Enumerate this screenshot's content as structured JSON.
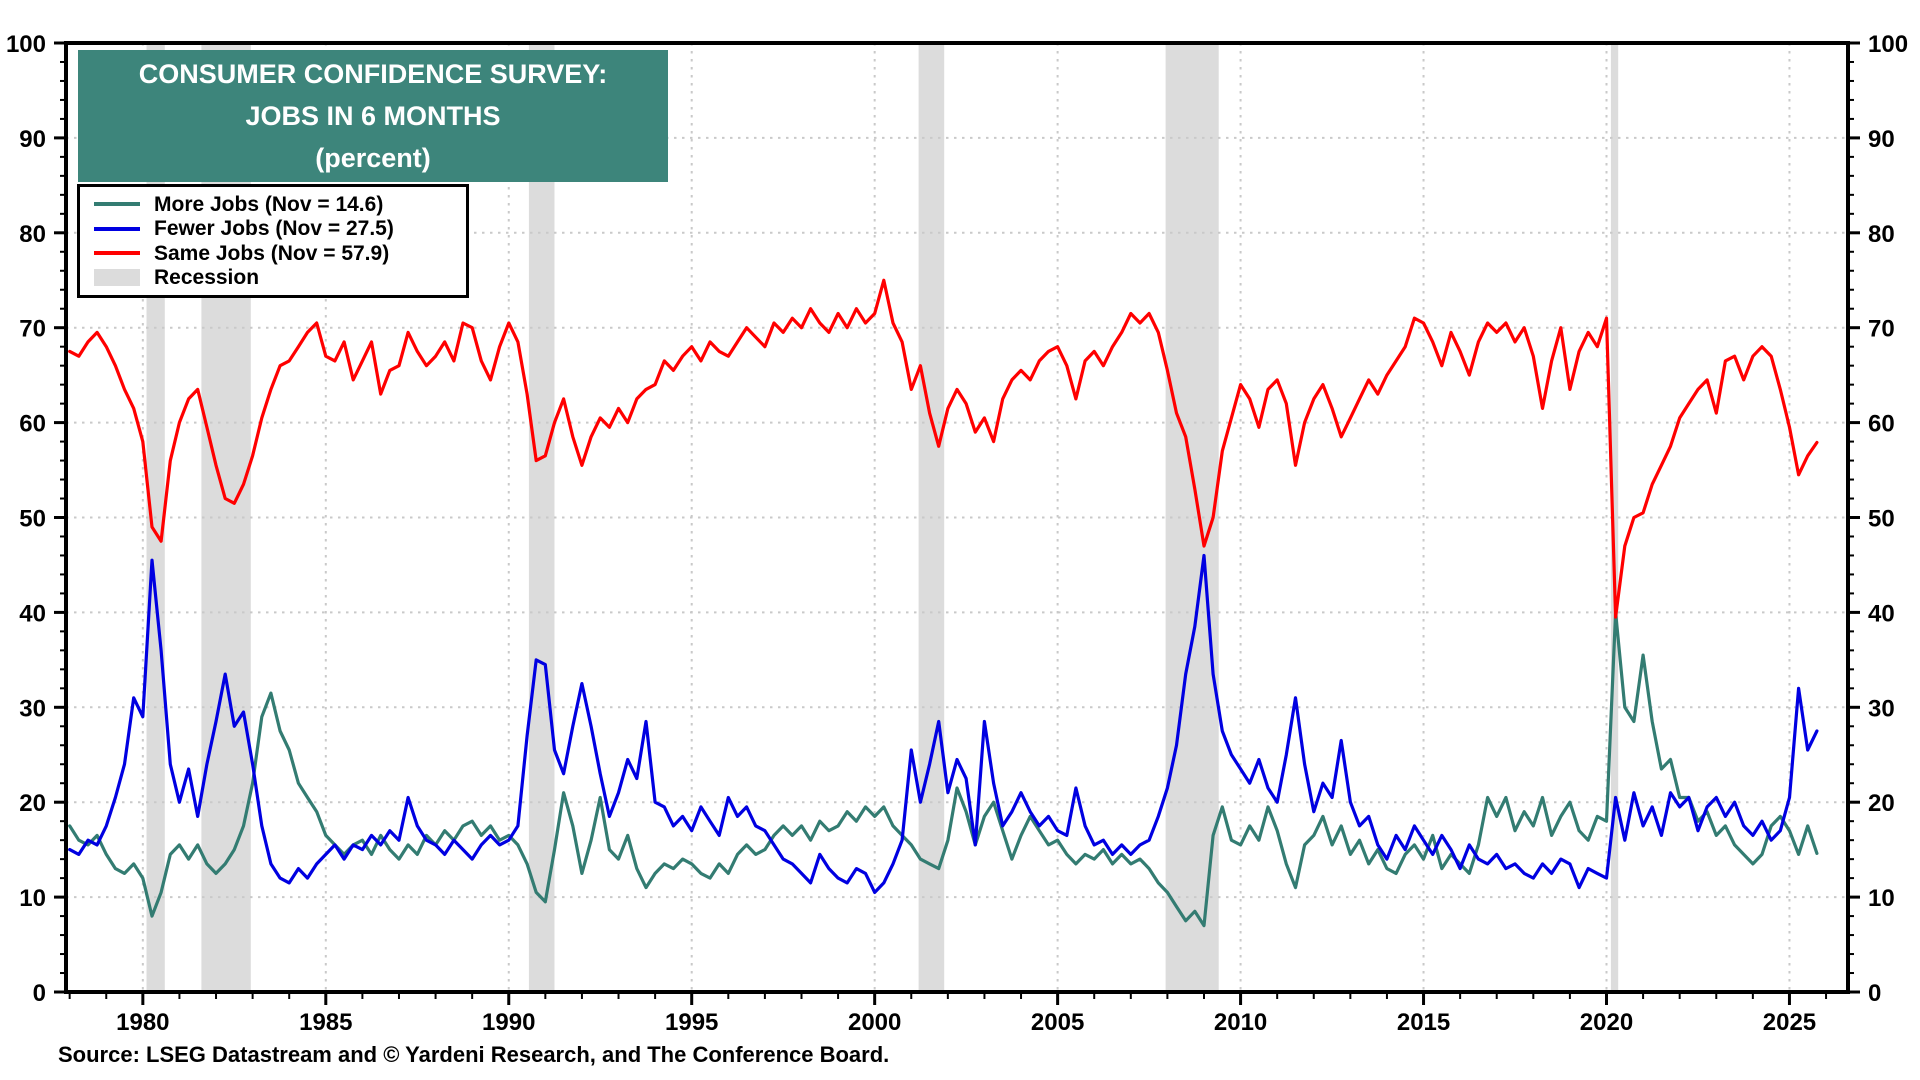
{
  "title": {
    "line1": "CONSUMER CONFIDENCE SURVEY:",
    "line2": "JOBS IN 6 MONTHS",
    "line3": "(percent)"
  },
  "legend": {
    "items": [
      {
        "label": "More Jobs (Nov = 14.6)",
        "color": "#337c72",
        "marker": "line"
      },
      {
        "label": "Fewer Jobs (Nov = 27.5)",
        "color": "#0000e1",
        "marker": "line"
      },
      {
        "label": "Same Jobs (Nov = 57.9)",
        "color": "#ff0000",
        "marker": "line"
      },
      {
        "label": "Recession",
        "color": "#dcdcdc",
        "marker": "patch"
      }
    ]
  },
  "source_note": "Source: LSEG Datastream and © Yardeni Research, and The Conference Board.",
  "colors": {
    "title_bg": "#3d857b",
    "title_text": "#ffffff",
    "grid": "#c9c9c9",
    "recession": "#dcdcdc",
    "frame": "#000000",
    "tick_label": "#000000"
  },
  "chart_data": {
    "type": "line",
    "title": "CONSUMER CONFIDENCE SURVEY: JOBS IN 6 MONTHS (percent)",
    "xlabel": "",
    "ylabel": "percent",
    "xlim": [
      1977.9,
      2026.6
    ],
    "ylim": [
      0,
      100
    ],
    "x_ticks": [
      1980,
      1985,
      1990,
      1995,
      2000,
      2005,
      2010,
      2015,
      2020,
      2025
    ],
    "x_minor_step": 1,
    "y_ticks": [
      0,
      10,
      20,
      30,
      40,
      50,
      60,
      70,
      80,
      90,
      100
    ],
    "y_minor_step": 2,
    "grid": "dotted gray at every labeled x year and every y multiple of 10",
    "legend_position": "upper-left",
    "x_start": 1978.0,
    "x_step": 0.25,
    "x_unit": "year (quarterly samples of monthly survey data, ending Nov 2025)",
    "recessions": [
      [
        1980.1,
        1980.6
      ],
      [
        1981.6,
        1982.95
      ],
      [
        1990.55,
        1991.25
      ],
      [
        2001.2,
        2001.9
      ],
      [
        2007.95,
        2009.4
      ],
      [
        2020.12,
        2020.32
      ]
    ],
    "series": [
      {
        "name": "More Jobs",
        "nov_2025_value": 14.6,
        "color": "#337c72",
        "values": [
          17.5,
          16,
          15.5,
          16.5,
          14.5,
          13,
          12.5,
          13.5,
          12,
          8,
          10.5,
          14.5,
          15.5,
          14,
          15.5,
          13.5,
          12.5,
          13.5,
          15,
          17.5,
          22,
          29,
          31.5,
          27.5,
          25.5,
          22,
          20.5,
          19,
          16.5,
          15.5,
          14.5,
          15.5,
          16,
          14.5,
          16.5,
          15,
          14,
          15.5,
          14.5,
          16.5,
          15.5,
          17,
          16,
          17.5,
          18,
          16.5,
          17.5,
          16,
          16.5,
          15.5,
          13.5,
          10.5,
          9.5,
          15,
          21,
          17.5,
          12.5,
          16,
          20.5,
          15,
          14,
          16.5,
          13,
          11,
          12.5,
          13.5,
          13,
          14,
          13.5,
          12.5,
          12,
          13.5,
          12.5,
          14.5,
          15.5,
          14.5,
          15,
          16.5,
          17.5,
          16.5,
          17.5,
          16,
          18,
          17,
          17.5,
          19,
          18,
          19.5,
          18.5,
          19.5,
          17.5,
          16.5,
          15.5,
          14,
          13.5,
          13,
          16,
          21.5,
          19,
          15.5,
          18.5,
          20,
          17,
          14,
          16.5,
          18.5,
          17,
          15.5,
          16,
          14.5,
          13.5,
          14.5,
          14,
          15,
          13.5,
          14.5,
          13.5,
          14,
          13,
          11.5,
          10.5,
          9,
          7.5,
          8.5,
          7,
          16.5,
          19.5,
          16,
          15.5,
          17.5,
          16,
          19.5,
          17,
          13.5,
          11,
          15.5,
          16.5,
          18.5,
          15.5,
          17.5,
          14.5,
          16,
          13.5,
          15,
          13,
          12.5,
          14.5,
          15.5,
          14,
          16.5,
          13,
          14.5,
          13.5,
          12.5,
          15.5,
          20.5,
          18.5,
          20.5,
          17,
          19,
          17.5,
          20.5,
          16.5,
          18.5,
          20,
          17,
          16,
          18.5,
          18,
          40,
          30,
          28.5,
          35.5,
          28.5,
          23.5,
          24.5,
          20.5,
          20.5,
          18,
          19,
          16.5,
          17.5,
          15.5,
          14.5,
          13.5,
          14.5,
          17.5,
          18.5,
          17,
          14.5,
          17.5,
          14.6
        ]
      },
      {
        "name": "Fewer Jobs",
        "nov_2025_value": 27.5,
        "color": "#0000e1",
        "values": [
          15,
          14.5,
          16,
          15.5,
          17.5,
          20.5,
          24,
          31,
          29,
          45.5,
          36,
          24,
          20,
          23.5,
          18.5,
          24,
          28.5,
          33.5,
          28,
          29.5,
          24,
          17.5,
          13.5,
          12,
          11.5,
          13,
          12,
          13.5,
          14.5,
          15.5,
          14,
          15.5,
          15,
          16.5,
          15.5,
          17,
          16,
          20.5,
          17.5,
          16,
          15.5,
          14.5,
          16,
          15,
          14,
          15.5,
          16.5,
          15.5,
          16,
          17.5,
          27,
          35,
          34.5,
          25.5,
          23,
          28,
          32.5,
          28,
          23,
          18.5,
          21,
          24.5,
          22.5,
          28.5,
          20,
          19.5,
          17.5,
          18.5,
          17,
          19.5,
          18,
          16.5,
          20.5,
          18.5,
          19.5,
          17.5,
          17,
          15.5,
          14,
          13.5,
          12.5,
          11.5,
          14.5,
          13,
          12,
          11.5,
          13,
          12.5,
          10.5,
          11.5,
          13.5,
          16,
          25.5,
          20,
          24,
          28.5,
          21,
          24.5,
          22.5,
          15.5,
          28.5,
          22,
          17.5,
          19,
          21,
          19,
          17.5,
          18.5,
          17,
          16.5,
          21.5,
          17.5,
          15.5,
          16,
          14.5,
          15.5,
          14.5,
          15.5,
          16,
          18.5,
          21.5,
          26,
          33.5,
          38.5,
          46,
          33.5,
          27.5,
          25,
          23.5,
          22,
          24.5,
          21.5,
          20,
          25,
          31,
          24,
          19,
          22,
          20.5,
          26.5,
          20,
          17.5,
          18.5,
          15.5,
          14,
          16.5,
          15,
          17.5,
          16,
          14.5,
          16.5,
          15,
          13,
          15.5,
          14,
          13.5,
          14.5,
          13,
          13.5,
          12.5,
          12,
          13.5,
          12.5,
          14,
          13.5,
          11,
          13,
          12.5,
          12,
          20.5,
          16,
          21,
          17.5,
          19.5,
          16.5,
          21,
          19.5,
          20.5,
          17,
          19.5,
          20.5,
          18.5,
          20,
          17.5,
          16.5,
          18,
          16,
          17,
          20.5,
          32,
          25.5,
          27.5
        ]
      },
      {
        "name": "Same Jobs",
        "nov_2025_value": 57.9,
        "color": "#ff0000",
        "values": [
          67.5,
          67,
          68.5,
          69.5,
          68,
          66,
          63.5,
          61.5,
          58,
          49,
          47.5,
          56,
          60,
          62.5,
          63.5,
          59.5,
          55.5,
          52,
          51.5,
          53.5,
          56.5,
          60.5,
          63.5,
          66,
          66.5,
          68,
          69.5,
          70.5,
          67,
          66.5,
          68.5,
          64.5,
          66.5,
          68.5,
          63,
          65.5,
          66,
          69.5,
          67.5,
          66,
          67,
          68.5,
          66.5,
          70.5,
          70,
          66.5,
          64.5,
          68,
          70.5,
          68.5,
          63,
          56,
          56.5,
          60,
          62.5,
          58.5,
          55.5,
          58.5,
          60.5,
          59.5,
          61.5,
          60,
          62.5,
          63.5,
          64,
          66.5,
          65.5,
          67,
          68,
          66.5,
          68.5,
          67.5,
          67,
          68.5,
          70,
          69,
          68,
          70.5,
          69.5,
          71,
          70,
          72,
          70.5,
          69.5,
          71.5,
          70,
          72,
          70.5,
          71.5,
          75,
          70.5,
          68.5,
          63.5,
          66,
          61,
          57.5,
          61.5,
          63.5,
          62,
          59,
          60.5,
          58,
          62.5,
          64.5,
          65.5,
          64.5,
          66.5,
          67.5,
          68,
          66,
          62.5,
          66.5,
          67.5,
          66,
          68,
          69.5,
          71.5,
          70.5,
          71.5,
          69.5,
          65.5,
          61,
          58.5,
          53,
          47,
          50,
          57,
          60.5,
          64,
          62.5,
          59.5,
          63.5,
          64.5,
          62,
          55.5,
          60,
          62.5,
          64,
          61.5,
          58.5,
          60.5,
          62.5,
          64.5,
          63,
          65,
          66.5,
          68,
          71,
          70.5,
          68.5,
          66,
          69.5,
          67.5,
          65,
          68.5,
          70.5,
          69.5,
          70.5,
          68.5,
          70,
          67,
          61.5,
          66.5,
          70,
          63.5,
          67.5,
          69.5,
          68,
          71,
          39.5,
          47,
          50,
          50.5,
          53.5,
          55.5,
          57.5,
          60.5,
          62,
          63.5,
          64.5,
          61,
          66.5,
          67,
          64.5,
          67,
          68,
          67,
          63.5,
          59.5,
          54.5,
          56.5,
          57.9
        ]
      }
    ]
  }
}
